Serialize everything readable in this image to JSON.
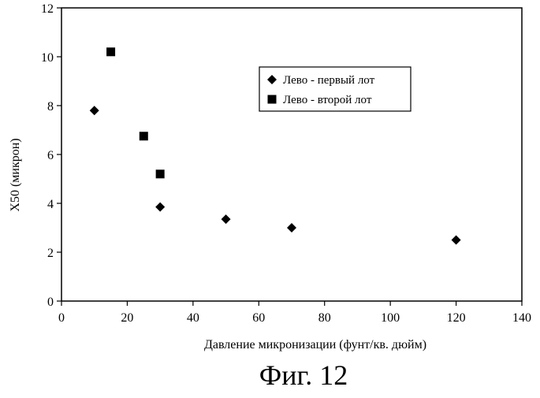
{
  "chart_data": {
    "type": "scatter",
    "title": "",
    "xlabel": "Давление микронизации (фунт/кв. дюйм)",
    "ylabel": "X50 (микрон)",
    "xlim": [
      0,
      140
    ],
    "ylim": [
      0,
      12
    ],
    "xticks": [
      0,
      20,
      40,
      60,
      80,
      100,
      120,
      140
    ],
    "yticks": [
      0,
      2,
      4,
      6,
      8,
      10,
      12
    ],
    "grid": false,
    "legend_position": "top-right",
    "series": [
      {
        "name": "Лево - первый лот",
        "marker": "diamond",
        "color": "#000000",
        "points": [
          {
            "x": 10,
            "y": 7.8
          },
          {
            "x": 30,
            "y": 3.85
          },
          {
            "x": 50,
            "y": 3.35
          },
          {
            "x": 70,
            "y": 3.0
          },
          {
            "x": 120,
            "y": 2.5
          }
        ]
      },
      {
        "name": "Лево - второй лот",
        "marker": "square",
        "color": "#000000",
        "points": [
          {
            "x": 15,
            "y": 10.2
          },
          {
            "x": 25,
            "y": 6.75
          },
          {
            "x": 30,
            "y": 5.2
          }
        ]
      }
    ]
  },
  "caption": "Фиг. 12"
}
